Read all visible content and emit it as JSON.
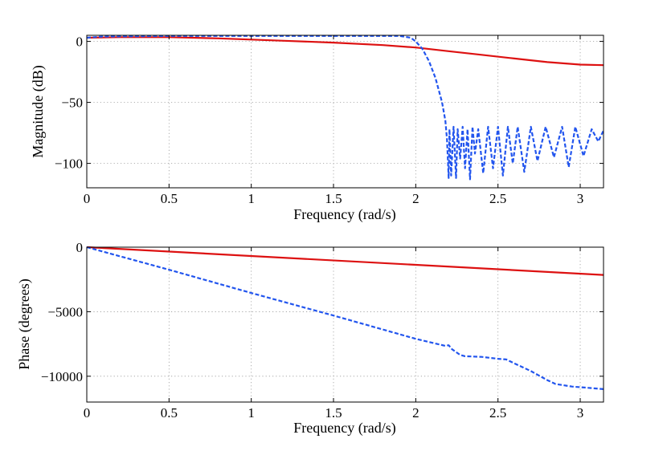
{
  "chart_data": [
    {
      "type": "line",
      "xlabel": "Frequency (rad/s)",
      "ylabel": "Magnitude (dB)",
      "xlim": [
        0,
        3.1416
      ],
      "ylim": [
        -120,
        5
      ],
      "xticks": [
        0,
        0.5,
        1,
        1.5,
        2,
        2.5,
        3
      ],
      "xtick_labels": [
        "0",
        "0.5",
        "1",
        "1.5",
        "2",
        "2.5",
        "3"
      ],
      "yticks": [
        0,
        -50,
        -100
      ],
      "ytick_labels": [
        "0",
        "−50",
        "−100"
      ],
      "grid": true,
      "series": [
        {
          "name": "red-solid",
          "color": "#dd1111",
          "style": "solid",
          "x": [
            0,
            0.2,
            0.5,
            0.8,
            1.0,
            1.2,
            1.5,
            1.8,
            2.0,
            2.2,
            2.4,
            2.6,
            2.8,
            3.0,
            3.1416
          ],
          "y": [
            3,
            3.5,
            3.5,
            2.5,
            1.5,
            0.5,
            -1,
            -3,
            -5,
            -8,
            -11,
            -14,
            -17,
            -19,
            -19.5
          ]
        },
        {
          "name": "blue-dashed",
          "color": "#2255ee",
          "style": "dashed",
          "x": [
            0,
            0.1,
            0.5,
            1.0,
            1.5,
            1.9,
            1.97,
            2.0,
            2.04,
            2.08,
            2.12,
            2.16,
            2.18,
            2.19,
            2.2,
            2.205,
            2.215,
            2.23,
            2.245,
            2.255,
            2.27,
            2.285,
            2.3,
            2.315,
            2.33,
            2.345,
            2.36,
            2.38,
            2.41,
            2.44,
            2.47,
            2.5,
            2.53,
            2.56,
            2.59,
            2.62,
            2.66,
            2.7,
            2.74,
            2.79,
            2.84,
            2.89,
            2.93,
            2.97,
            3.02,
            3.07,
            3.11,
            3.1416
          ],
          "y": [
            3,
            4,
            4.5,
            4.5,
            4.5,
            4.5,
            3,
            0,
            -6,
            -16,
            -30,
            -50,
            -65,
            -80,
            -112,
            -72,
            -110,
            -70,
            -112,
            -72,
            -96,
            -70,
            -104,
            -72,
            -113,
            -70,
            -92,
            -72,
            -108,
            -70,
            -104,
            -70,
            -110,
            -70,
            -100,
            -70,
            -107,
            -70,
            -98,
            -70,
            -95,
            -70,
            -103,
            -70,
            -94,
            -72,
            -82,
            -73
          ]
        }
      ]
    },
    {
      "type": "line",
      "xlabel": "Frequency (rad/s)",
      "ylabel": "Phase (degrees)",
      "xlim": [
        0,
        3.1416
      ],
      "ylim": [
        -12000,
        0
      ],
      "xticks": [
        0,
        0.5,
        1,
        1.5,
        2,
        2.5,
        3
      ],
      "xtick_labels": [
        "0",
        "0.5",
        "1",
        "1.5",
        "2",
        "2.5",
        "3"
      ],
      "yticks": [
        0,
        -5000,
        -10000
      ],
      "ytick_labels": [
        "0",
        "−5000",
        "−10000"
      ],
      "grid": true,
      "series": [
        {
          "name": "red-solid",
          "color": "#dd1111",
          "style": "solid",
          "x": [
            0,
            3.1416
          ],
          "y": [
            0,
            -2150
          ]
        },
        {
          "name": "blue-dashed",
          "color": "#2255ee",
          "style": "dashed",
          "x": [
            0,
            0.5,
            1.0,
            1.5,
            2.0,
            2.18,
            2.2,
            2.22,
            2.27,
            2.3,
            2.4,
            2.5,
            2.55,
            2.6,
            2.7,
            2.8,
            2.85,
            2.95,
            3.05,
            3.1416
          ],
          "y": [
            0,
            -1750,
            -3550,
            -5300,
            -7100,
            -7650,
            -7600,
            -7900,
            -8350,
            -8450,
            -8500,
            -8650,
            -8700,
            -9000,
            -9600,
            -10300,
            -10600,
            -10800,
            -10900,
            -11000
          ]
        }
      ]
    }
  ]
}
